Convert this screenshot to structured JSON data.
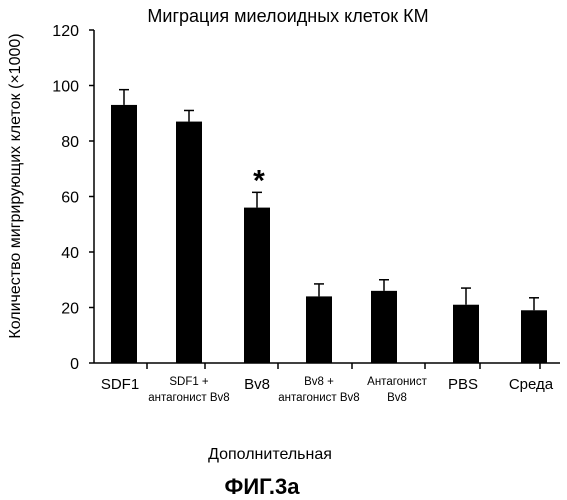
{
  "chart_data": {
    "type": "bar",
    "title": "Миграция миелоидных клеток КМ",
    "ylabel": "Количество мигрирующих клеток (×1000)",
    "xlabel": "Дополнительная",
    "caption": "ФИГ.3а",
    "ylim": [
      0,
      120
    ],
    "yticks": [
      0,
      20,
      40,
      60,
      80,
      100,
      120
    ],
    "grid": false,
    "categories": [
      [
        "SDF1"
      ],
      [
        "SDF1 +",
        "антагонист Bv8"
      ],
      [
        "Bv8"
      ],
      [
        "Bv8 +",
        "антагонист Bv8"
      ],
      [
        "Антагонист",
        "Bv8"
      ],
      [
        "PBS"
      ],
      [
        "Среда"
      ]
    ],
    "values": [
      93,
      87,
      56,
      24,
      26,
      21,
      19
    ],
    "errors": [
      5.5,
      4,
      5.5,
      4.5,
      4,
      6,
      4.5
    ],
    "significance": [
      null,
      null,
      "*",
      null,
      null,
      null,
      null
    ],
    "bar_color": "#000000"
  }
}
